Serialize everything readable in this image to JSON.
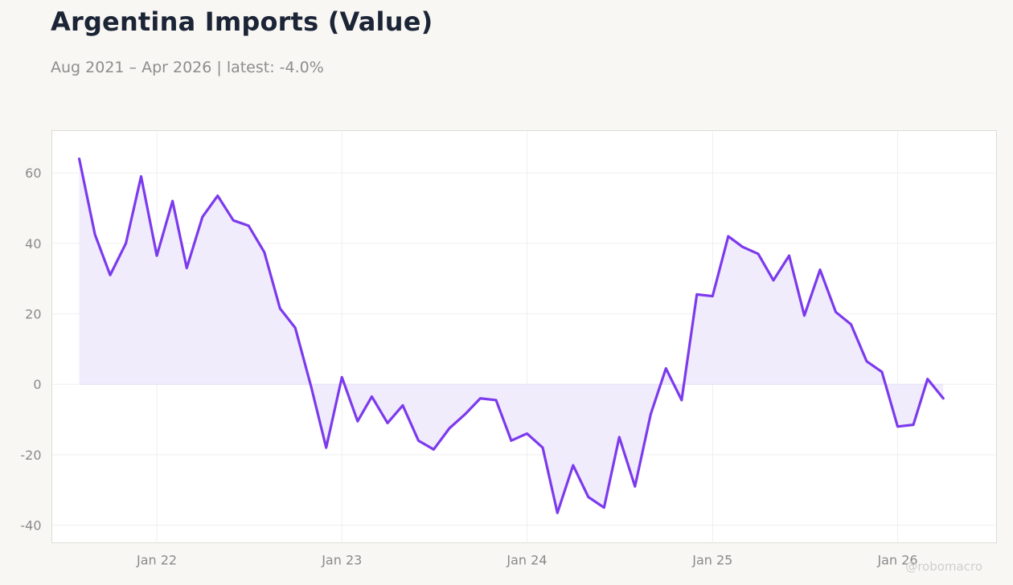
{
  "title": "Argentina Imports (Value)",
  "subtitle": "Aug 2021 – Apr 2026 | latest: -4.0%",
  "watermark": "@robomacro",
  "colors": {
    "line": "#7c3aed",
    "fill": "#f1ecfc",
    "background": "#f8f7f4",
    "plot_background": "#ffffff",
    "grid": "#f0eff0",
    "border": "#dcdcd6",
    "zero_line": "#e6dff8"
  },
  "chart_data": {
    "type": "area",
    "title": "Argentina Imports (Value)",
    "xlabel": "",
    "ylabel": "",
    "ylim": [
      -45,
      72
    ],
    "xlim": [
      "2021-06-08",
      "2026-07-15"
    ],
    "grid": true,
    "yticks": [
      60,
      40,
      20,
      0,
      -20,
      -40
    ],
    "ytick_labels": [
      "60",
      "40",
      "20",
      "0",
      "-20",
      "-40"
    ],
    "xticks": [
      "2022-01-01",
      "2023-01-01",
      "2024-01-01",
      "2025-01-01",
      "2026-01-01"
    ],
    "xtick_labels": [
      "Jan 22",
      "Jan 23",
      "Jan 24",
      "Jan 25",
      "Jan 26"
    ],
    "series": [
      {
        "x": [
          "2021-08",
          "2021-09",
          "2021-10",
          "2021-11",
          "2021-12",
          "2022-01",
          "2022-02",
          "2022-03",
          "2022-04",
          "2022-05",
          "2022-06",
          "2022-07",
          "2022-08",
          "2022-09",
          "2022-10",
          "2022-11",
          "2022-12",
          "2023-01",
          "2023-02",
          "2023-03",
          "2023-04",
          "2023-05",
          "2023-06",
          "2023-07",
          "2023-08",
          "2023-09",
          "2023-10",
          "2023-11",
          "2023-12",
          "2024-01",
          "2024-02",
          "2024-03",
          "2024-04",
          "2024-05",
          "2024-06",
          "2024-07",
          "2024-08",
          "2024-09",
          "2024-10",
          "2024-11",
          "2024-12",
          "2025-01",
          "2025-02",
          "2025-03",
          "2025-04",
          "2025-05",
          "2025-06",
          "2025-07",
          "2025-08",
          "2025-09",
          "2025-10",
          "2025-11",
          "2025-12",
          "2026-01",
          "2026-02",
          "2026-03",
          "2026-04"
        ],
        "values": [
          64.0,
          42.5,
          31.0,
          40.0,
          59.0,
          36.5,
          52.0,
          33.0,
          47.5,
          53.5,
          46.5,
          45.0,
          37.5,
          21.5,
          16.0,
          -0.5,
          -18.0,
          2.0,
          -10.5,
          -3.5,
          -11.0,
          -6.0,
          -16.0,
          -18.5,
          -12.5,
          -8.5,
          -4.0,
          -4.5,
          -16.0,
          -14.0,
          -18.0,
          -36.5,
          -23.0,
          -32.0,
          -35.0,
          -15.0,
          -29.0,
          -8.5,
          4.5,
          -4.5,
          25.5,
          25.0,
          42.0,
          39.0,
          37.0,
          29.5,
          36.5,
          19.5,
          32.5,
          20.5,
          17.0,
          6.5,
          3.5,
          -12.0,
          -11.5,
          1.5,
          -4.0
        ]
      }
    ]
  }
}
